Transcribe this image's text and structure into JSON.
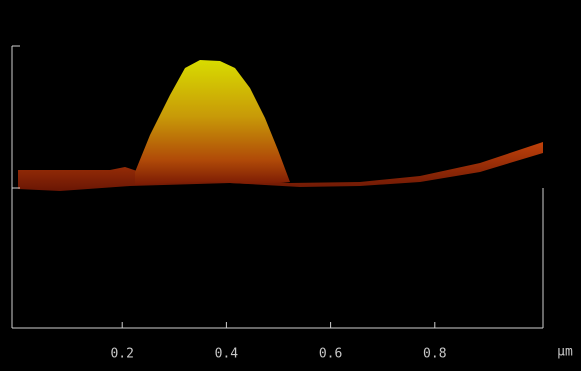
{
  "x_axis": {
    "lim": [
      0,
      1
    ],
    "ticks": [
      0.2,
      0.4,
      0.6,
      0.8
    ],
    "unit": "µm"
  }
}
